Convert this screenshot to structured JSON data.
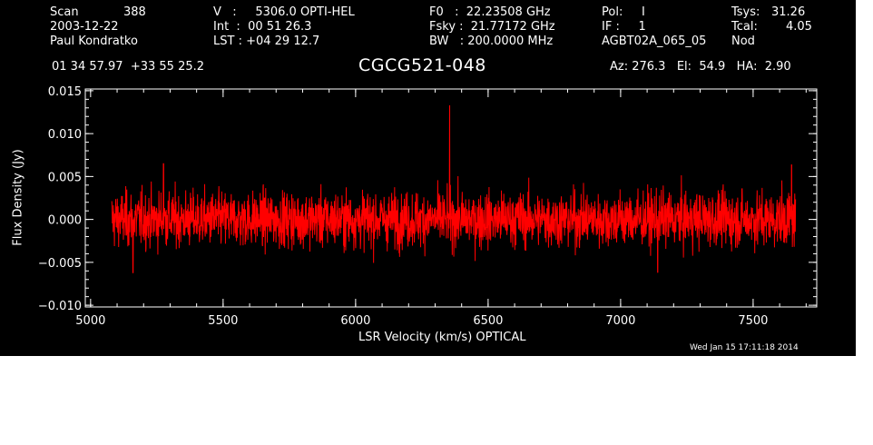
{
  "header": {
    "col1": {
      "scan_label": "Scan",
      "scan_value": "388",
      "date": "2003-12-22",
      "observer": "Paul Kondratko"
    },
    "col2": {
      "v_line": "V   :     5306.0 OPTI-HEL",
      "int_line": "Int  :  00 51 26.3",
      "lst_line": "LST : +04 29 12.7"
    },
    "col3": {
      "f0_line": "F0   :  22.23508 GHz",
      "fsky_line": "Fsky :  21.77172 GHz",
      "bw_line": "BW   : 200.0000 MHz"
    },
    "col4": {
      "pol_line": "Pol:     I",
      "if_line": "IF :     1",
      "project": "AGBT02A_065_05"
    },
    "col5": {
      "tsys_label": "Tsys:",
      "tsys_value": "31.26",
      "tcal_label": "Tcal:",
      "tcal_value": "4.05",
      "mode": "Nod"
    },
    "coords": "01 34 57.97  +33 55 25.2",
    "source": "CGCG521-048",
    "az_el_ha": "Az: 276.3   El:  54.9   HA:  2.90",
    "timestamp": "Wed Jan 15 17:11:18 2014"
  },
  "colors": {
    "background": "#000000",
    "axes": "#ffffff",
    "spectrum": "#ff0000"
  },
  "chart_data": {
    "type": "line",
    "xlabel": "LSR Velocity (km/s) OPTICAL",
    "ylabel": "Flux Density (Jy)",
    "xlim": [
      4980,
      7740
    ],
    "ylim": [
      -0.0102,
      0.0152
    ],
    "xticks": [
      5000,
      5500,
      6000,
      6500,
      7000,
      7500
    ],
    "xtick_labels": [
      "5000",
      "5500",
      "6000",
      "6500",
      "7000",
      "7500"
    ],
    "yticks": [
      -0.01,
      -0.005,
      0.0,
      0.005,
      0.01,
      0.015
    ],
    "ytick_labels": [
      "−0.010",
      "−0.005",
      "0.000",
      "0.005",
      "0.010",
      "0.015"
    ],
    "series": [
      {
        "x_range": [
          5080,
          7660
        ],
        "noise_rms_jy": 0.0016,
        "features": [
          {
            "x": 6355,
            "y": 0.0133
          },
          {
            "x": 5275,
            "y": 0.0065
          },
          {
            "x": 7645,
            "y": 0.0064
          },
          {
            "x": 5160,
            "y": -0.0062
          },
          {
            "x": 7140,
            "y": -0.0062
          }
        ]
      }
    ]
  }
}
